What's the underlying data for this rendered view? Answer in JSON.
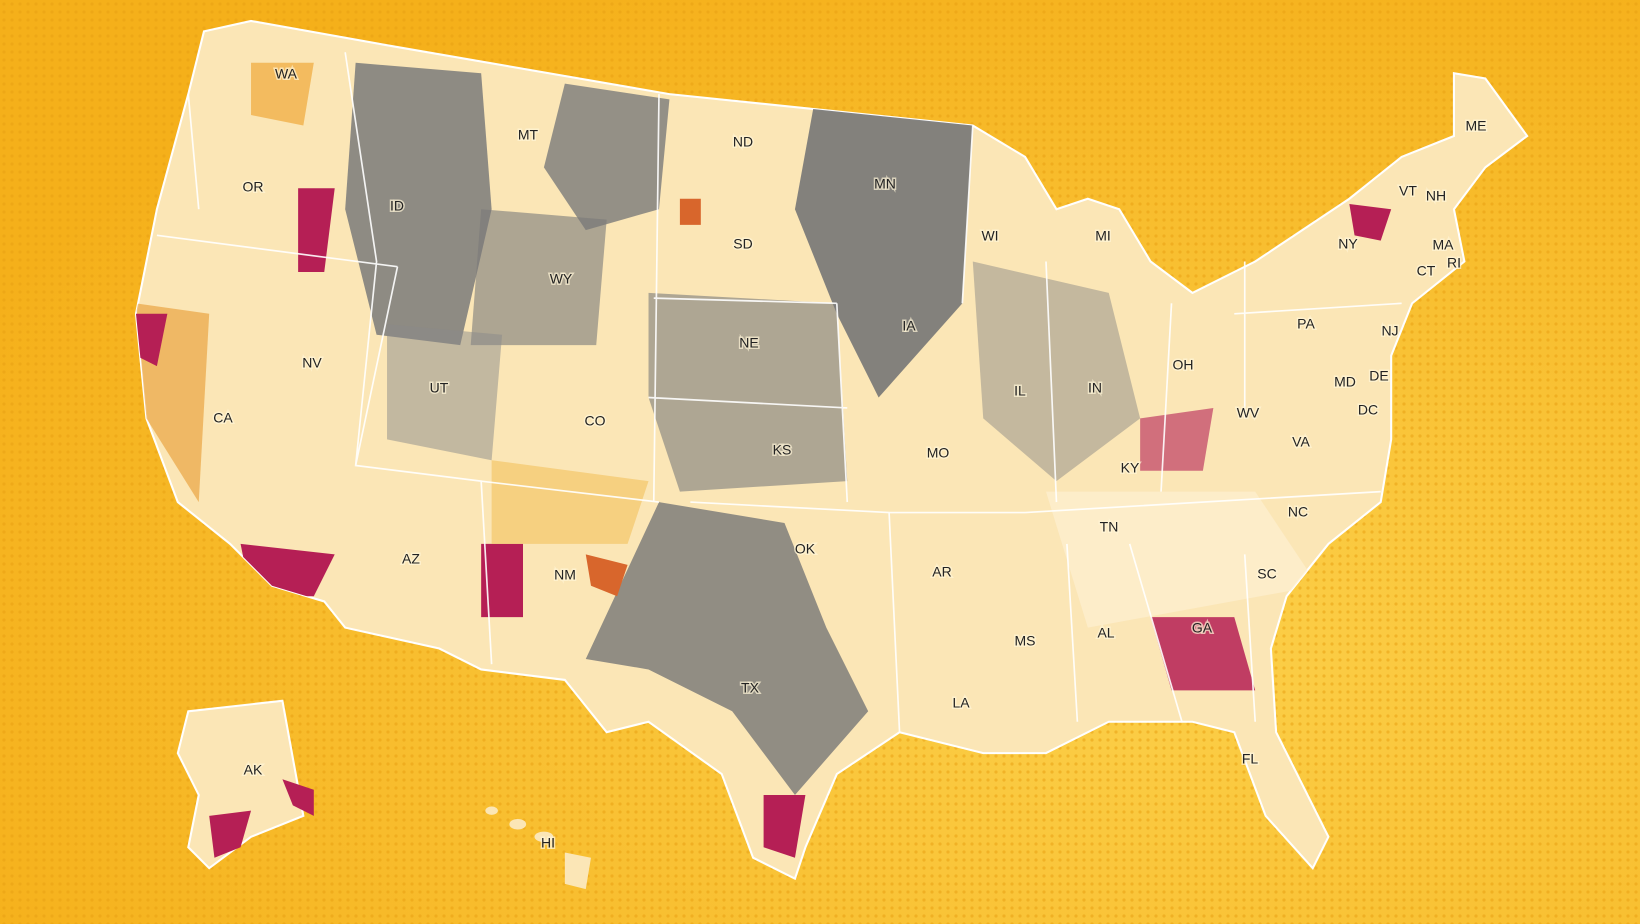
{
  "map": {
    "states": [
      "WA",
      "OR",
      "ID",
      "MT",
      "ND",
      "MN",
      "WI",
      "MI",
      "SD",
      "WY",
      "NE",
      "IA",
      "NV",
      "UT",
      "CA",
      "CO",
      "KS",
      "MO",
      "IL",
      "IN",
      "OH",
      "KY",
      "WV",
      "VA",
      "PA",
      "NY",
      "VT",
      "NH",
      "ME",
      "MA",
      "RI",
      "CT",
      "NJ",
      "MD",
      "DE",
      "DC",
      "NC",
      "SC",
      "TN",
      "GA",
      "AL",
      "MS",
      "AR",
      "LA",
      "OK",
      "TX",
      "NM",
      "AZ",
      "FL",
      "AK",
      "HI"
    ]
  }
}
